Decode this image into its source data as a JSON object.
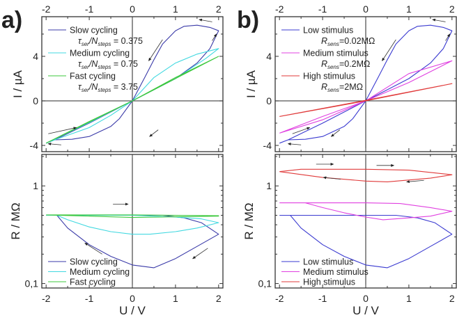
{
  "chart_data": [
    {
      "id": "a_iv",
      "panel_label": "a)",
      "type": "line",
      "xlabel": "",
      "ylabel": "I / µA",
      "xlim": [
        -2.1,
        2.1
      ],
      "ylim": [
        -4.56,
        7.56
      ],
      "yscale": "linear",
      "xticks": [
        "-2",
        "-1",
        "0",
        "1",
        "2"
      ],
      "xtick_values": [
        -2,
        -1,
        0,
        1,
        2
      ],
      "yticks": [
        "4",
        "0",
        "-4"
      ],
      "ytick_values": [
        4,
        0,
        -4
      ],
      "series": [
        {
          "name": "Slow cycling",
          "color": "#3a3aa8",
          "sub": {
            "var1": "τ",
            "sub1": "ser",
            "var2": "/N",
            "sub2": "steps",
            "value": " = 0.375"
          },
          "x": [
            -2,
            -1.8,
            -1,
            0,
            1,
            1.5,
            1.8,
            2,
            1.8,
            1.5,
            1.2,
            1,
            0.7,
            0.5,
            0.3,
            0,
            -0.3,
            -0.5,
            -1,
            -1.4,
            -1.8,
            -2
          ],
          "y": [
            -3.8,
            -3.5,
            -2,
            0,
            2,
            3.4,
            4.7,
            6.3,
            6.6,
            6.8,
            6.7,
            6.3,
            5.1,
            3.7,
            2.2,
            0,
            -1.6,
            -2.3,
            -3.2,
            -3.45,
            -3.5,
            -3.8
          ]
        },
        {
          "name": "Medium cycling",
          "color": "#40d8e0",
          "sub": {
            "var1": "τ",
            "sub1": "ser",
            "var2": "/N",
            "sub2": "steps",
            "value": " = 0.75"
          },
          "x": [
            -2,
            -1,
            0,
            1,
            1.7,
            2,
            1.5,
            1,
            0.5,
            0,
            -0.5,
            -1,
            -1.8,
            -2
          ],
          "y": [
            -3.8,
            -1.95,
            0,
            2,
            3.8,
            4.7,
            4.2,
            3.4,
            2.1,
            0,
            -1.3,
            -2.4,
            -3.5,
            -3.8
          ]
        },
        {
          "name": "Fast cycling",
          "color": "#3cc83c",
          "sub": {
            "var1": "τ",
            "sub1": "ser",
            "var2": "/N",
            "sub2": "steps",
            "value": " = 3.75"
          },
          "x": [
            -2,
            0,
            2,
            1,
            0,
            -1,
            -2
          ],
          "y": [
            -3.8,
            0,
            4.0,
            2.1,
            0,
            -1.85,
            -3.8
          ]
        }
      ],
      "arrows": [
        {
          "from": [
            1.85,
            7.1
          ],
          "to": [
            1.55,
            7.3
          ]
        },
        {
          "from": [
            1.85,
            5.4
          ],
          "to": [
            1.95,
            6.0
          ]
        },
        {
          "from": [
            0.7,
            5.5
          ],
          "to": [
            0.38,
            3.6
          ]
        },
        {
          "from": [
            0.6,
            -2.6
          ],
          "to": [
            0.4,
            -3.2
          ]
        },
        {
          "from": [
            -1.65,
            -3.95
          ],
          "to": [
            -1.95,
            -3.85
          ]
        },
        {
          "from": [
            -1.95,
            -2.95
          ],
          "to": [
            -1.3,
            -2.4
          ]
        }
      ]
    },
    {
      "id": "a_rv",
      "type": "line",
      "xlabel": "U / V",
      "ylabel": "R / MΩ",
      "xlim": [
        -2.1,
        2.1
      ],
      "ylim": [
        0.09,
        2.1
      ],
      "yscale": "log",
      "xticks": [
        "-2",
        "-1",
        "0",
        "1",
        "2"
      ],
      "xtick_values": [
        -2,
        -1,
        0,
        1,
        2
      ],
      "yticks": [
        "1",
        "0,1"
      ],
      "ytick_values": [
        1,
        0.1
      ],
      "series": [
        {
          "name": "Slow cycling",
          "color": "#3a3aa8",
          "x": [
            -2,
            0,
            0.7,
            1.2,
            1.6,
            2,
            1.5,
            1,
            0.5,
            0,
            -0.5,
            -1,
            -1.5,
            -1.75,
            -2
          ],
          "y": [
            0.5,
            0.5,
            0.5,
            0.47,
            0.42,
            0.32,
            0.24,
            0.18,
            0.145,
            0.155,
            0.19,
            0.25,
            0.37,
            0.5,
            0.5
          ]
        },
        {
          "name": "Medium cycling",
          "color": "#40d8e0",
          "x": [
            -2,
            0,
            1,
            1.6,
            2,
            1.5,
            1,
            0.4,
            0,
            -0.5,
            -1,
            -1.5,
            -1.75,
            -2
          ],
          "y": [
            0.5,
            0.5,
            0.48,
            0.46,
            0.42,
            0.37,
            0.34,
            0.32,
            0.32,
            0.34,
            0.38,
            0.45,
            0.5,
            0.5
          ]
        },
        {
          "name": "Fast cycling",
          "color": "#3cc83c",
          "x": [
            -2,
            0,
            2,
            2,
            0,
            -2
          ],
          "y": [
            0.505,
            0.505,
            0.495,
            0.49,
            0.475,
            0.505
          ]
        }
      ],
      "arrows": [
        {
          "from": [
            -0.45,
            0.65
          ],
          "to": [
            -0.1,
            0.65
          ]
        },
        {
          "from": [
            -0.7,
            0.2
          ],
          "to": [
            -1.1,
            0.26
          ]
        },
        {
          "from": [
            1.75,
            0.23
          ],
          "to": [
            1.4,
            0.18
          ]
        }
      ]
    },
    {
      "id": "b_iv",
      "panel_label": "b)",
      "type": "line",
      "xlabel": "",
      "ylabel": "I / µA",
      "xlim": [
        -2.1,
        2.1
      ],
      "ylim": [
        -4.56,
        7.56
      ],
      "yscale": "linear",
      "xticks": [
        "-2",
        "-1",
        "0",
        "1",
        "2"
      ],
      "xtick_values": [
        -2,
        -1,
        0,
        1,
        2
      ],
      "yticks": [
        "4",
        "0",
        "-4"
      ],
      "ytick_values": [
        4,
        0,
        -4
      ],
      "series": [
        {
          "name": "Low stimulus",
          "color": "#3a3ad0",
          "sub": {
            "var1": "R",
            "sub1": "sens",
            "var2": "",
            "sub2": "",
            "value": "=0.02MΩ"
          },
          "x": [
            -2,
            -1.8,
            -1,
            0,
            1,
            1.5,
            1.8,
            2,
            1.8,
            1.5,
            1.2,
            1,
            0.7,
            0.5,
            0.3,
            0,
            -0.3,
            -0.5,
            -1,
            -1.4,
            -1.8,
            -2
          ],
          "y": [
            -3.8,
            -3.5,
            -2,
            0,
            2,
            3.4,
            4.7,
            6.3,
            6.6,
            6.8,
            6.7,
            6.3,
            5.1,
            3.7,
            2.2,
            0,
            -1.6,
            -2.3,
            -3.2,
            -3.45,
            -3.5,
            -3.8
          ]
        },
        {
          "name": "Medium stimulus",
          "color": "#e040e0",
          "sub": {
            "var1": "R",
            "sub1": "sens",
            "var2": "",
            "sub2": "",
            "value": "=0.2MΩ"
          },
          "x": [
            -2,
            -1,
            0,
            1,
            2,
            1,
            0,
            -1,
            -2
          ],
          "y": [
            -2.9,
            -1.4,
            0,
            1.65,
            3.6,
            2.45,
            0,
            -1.7,
            -2.9
          ]
        },
        {
          "name": "High stimulus",
          "color": "#e03a3a",
          "sub": {
            "var1": "R",
            "sub1": "sens",
            "var2": "",
            "sub2": "",
            "value": "=2MΩ"
          },
          "x": [
            -2,
            0,
            2,
            0,
            -2
          ],
          "y": [
            -1.4,
            0,
            1.55,
            0.05,
            -1.4
          ]
        }
      ],
      "arrows": [
        {
          "from": [
            1.85,
            7.1
          ],
          "to": [
            1.55,
            7.3
          ]
        },
        {
          "from": [
            1.85,
            5.4
          ],
          "to": [
            1.95,
            6.0
          ]
        },
        {
          "from": [
            0.7,
            5.5
          ],
          "to": [
            0.38,
            3.6
          ]
        },
        {
          "from": [
            -0.6,
            -2.6
          ],
          "to": [
            -0.8,
            -3.2
          ]
        },
        {
          "from": [
            -1.5,
            -3.95
          ],
          "to": [
            -1.8,
            -3.85
          ]
        },
        {
          "from": [
            -1.7,
            -2.95
          ],
          "to": [
            -1.3,
            -2.4
          ]
        }
      ]
    },
    {
      "id": "b_rv",
      "type": "line",
      "xlabel": "U / V",
      "ylabel": "R / MΩ",
      "xlim": [
        -2.1,
        2.1
      ],
      "ylim": [
        0.09,
        2.1
      ],
      "yscale": "log",
      "xticks": [
        "-2",
        "-1",
        "0",
        "1",
        "2"
      ],
      "xtick_values": [
        -2,
        -1,
        0,
        1,
        2
      ],
      "yticks": [
        "1",
        "0,1"
      ],
      "ytick_values": [
        1,
        0.1
      ],
      "series": [
        {
          "name": "Low stimulus",
          "color": "#3a3ad0",
          "x": [
            -2,
            0,
            0.7,
            1.2,
            1.6,
            2,
            1.5,
            1,
            0.5,
            0,
            -0.5,
            -1,
            -1.5,
            -1.75,
            -2
          ],
          "y": [
            0.5,
            0.5,
            0.5,
            0.47,
            0.42,
            0.32,
            0.24,
            0.18,
            0.145,
            0.155,
            0.19,
            0.25,
            0.37,
            0.5,
            0.5
          ]
        },
        {
          "name": "Medium stimulus",
          "color": "#e040e0",
          "x": [
            -2,
            -1.4,
            0,
            0.8,
            1.5,
            2,
            1.5,
            1,
            0.4,
            0,
            -0.5,
            -1,
            -1.4,
            -2
          ],
          "y": [
            0.67,
            0.67,
            0.67,
            0.66,
            0.6,
            0.55,
            0.49,
            0.47,
            0.45,
            0.48,
            0.53,
            0.6,
            0.67,
            0.67
          ]
        },
        {
          "name": "High stimulus",
          "color": "#e03a3a",
          "x": [
            -2,
            -1.5,
            0,
            1,
            2,
            1.5,
            0.5,
            0,
            -1,
            -2
          ],
          "y": [
            1.4,
            1.48,
            1.48,
            1.45,
            1.3,
            1.2,
            1.1,
            1.12,
            1.22,
            1.4
          ]
        }
      ],
      "arrows": [
        {
          "from": [
            -1.15,
            1.67
          ],
          "to": [
            -0.75,
            1.67
          ]
        },
        {
          "from": [
            0.25,
            1.62
          ],
          "to": [
            0.65,
            1.62
          ]
        },
        {
          "from": [
            -0.58,
            1.17
          ],
          "to": [
            -0.98,
            1.22
          ]
        },
        {
          "from": [
            1.35,
            1.14
          ],
          "to": [
            0.95,
            1.1
          ]
        }
      ]
    }
  ]
}
